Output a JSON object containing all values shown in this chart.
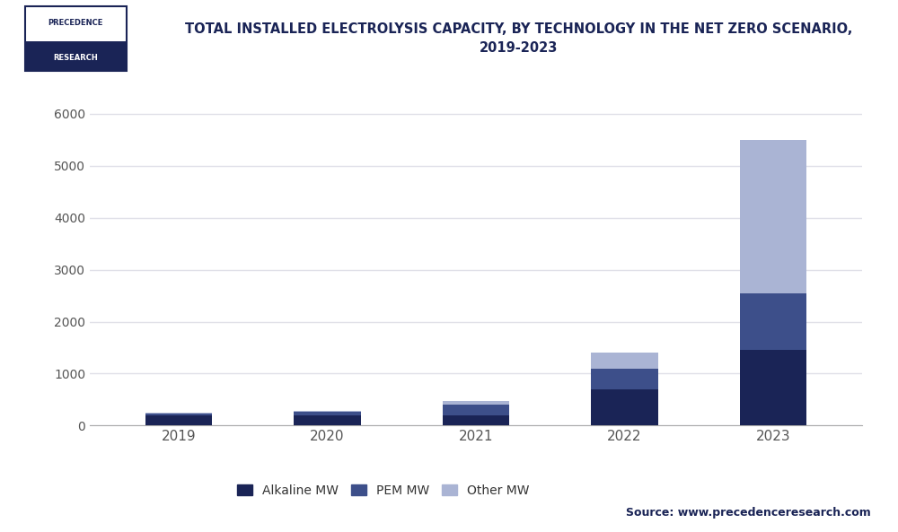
{
  "years": [
    "2019",
    "2020",
    "2021",
    "2022",
    "2023"
  ],
  "alkaline": [
    200,
    200,
    200,
    700,
    1450
  ],
  "pem": [
    30,
    70,
    200,
    400,
    1100
  ],
  "other": [
    10,
    20,
    80,
    310,
    2950
  ],
  "colors": {
    "alkaline": "#1a2456",
    "pem": "#3d4f8a",
    "other": "#aab4d4"
  },
  "title": "TOTAL INSTALLED ELECTROLYSIS CAPACITY, BY TECHNOLOGY IN THE NET ZERO SCENARIO,\n2019-2023",
  "ylim": [
    0,
    6500
  ],
  "yticks": [
    0,
    1000,
    2000,
    3000,
    4000,
    5000,
    6000
  ],
  "legend_labels": [
    "Alkaline MW",
    "PEM MW",
    "Other MW"
  ],
  "source_text": "Source: www.precedenceresearch.com",
  "bg_color": "#ffffff",
  "chart_bg": "#ffffff",
  "left_stripe_color": "#1a2456",
  "header_bg": "#ffffff",
  "divider_color": "#cccccc",
  "logo_top_text": "PRECEDENCE",
  "logo_bot_text": "RESEARCH",
  "logo_top_bg": "#ffffff",
  "logo_bot_bg": "#1a2456",
  "logo_text_color_top": "#1a2456",
  "logo_text_color_bot": "#ffffff",
  "grid_color": "#e0e0e8",
  "tick_color": "#555555",
  "bar_width": 0.45
}
